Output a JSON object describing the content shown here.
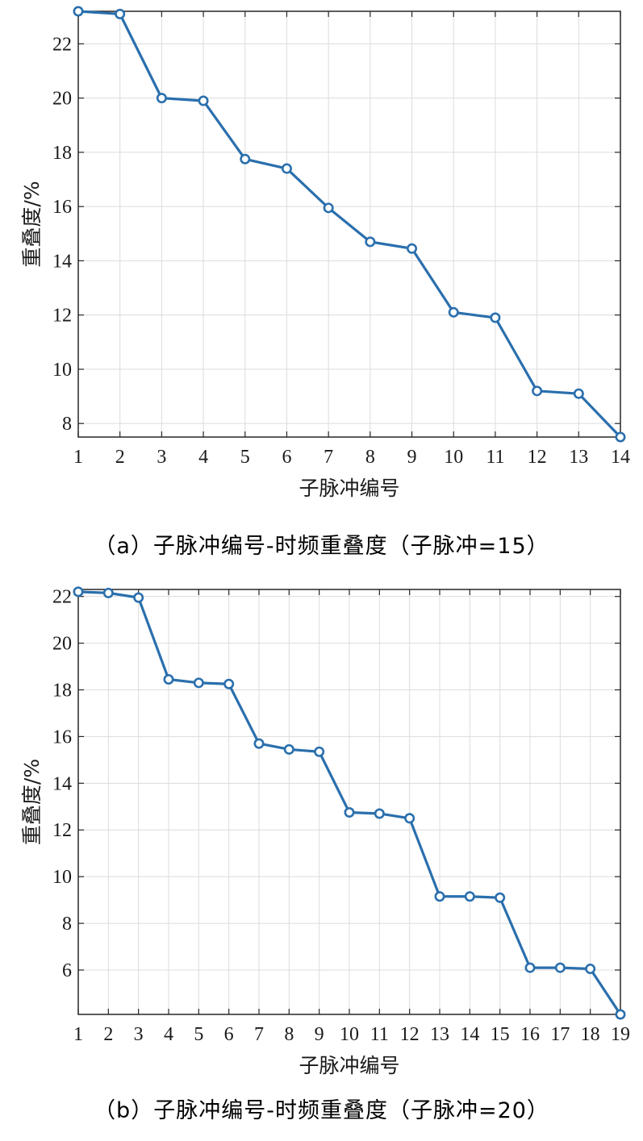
{
  "chart_data": [
    {
      "type": "line",
      "xlabel": "子脉冲编号",
      "ylabel": "重叠度/%",
      "caption": "（a）子脉冲编号-时频重叠度（子脉冲=15）",
      "x": [
        1,
        2,
        3,
        4,
        5,
        6,
        7,
        8,
        9,
        10,
        11,
        12,
        13,
        14
      ],
      "series": [
        {
          "values": [
            23.2,
            23.1,
            20.0,
            19.9,
            17.75,
            17.4,
            15.95,
            14.7,
            14.45,
            12.1,
            11.9,
            9.2,
            9.1,
            7.5
          ],
          "color": "#2a6fad",
          "marker": "circle"
        }
      ],
      "xlim": [
        1,
        14
      ],
      "ylim": [
        7.5,
        23.2
      ],
      "yticks": [
        8,
        10,
        12,
        14,
        16,
        18,
        20,
        22
      ],
      "xticks": [
        1,
        2,
        3,
        4,
        5,
        6,
        7,
        8,
        9,
        10,
        11,
        12,
        13,
        14
      ],
      "grid": true
    },
    {
      "type": "line",
      "xlabel": "子脉冲编号",
      "ylabel": "重叠度/%",
      "caption": "（b）子脉冲编号-时频重叠度（子脉冲=20）",
      "x": [
        1,
        2,
        3,
        4,
        5,
        6,
        7,
        8,
        9,
        10,
        11,
        12,
        13,
        14,
        15,
        16,
        17,
        18,
        19
      ],
      "series": [
        {
          "values": [
            22.2,
            22.15,
            21.95,
            18.45,
            18.3,
            18.25,
            15.7,
            15.45,
            15.35,
            12.75,
            12.7,
            12.5,
            9.15,
            9.15,
            9.1,
            6.1,
            6.1,
            6.05,
            4.1
          ],
          "color": "#2a6fad",
          "marker": "circle"
        }
      ],
      "xlim": [
        1,
        19
      ],
      "ylim": [
        4.1,
        22.3
      ],
      "yticks": [
        6,
        8,
        10,
        12,
        14,
        16,
        18,
        20,
        22
      ],
      "xticks": [
        1,
        2,
        3,
        4,
        5,
        6,
        7,
        8,
        9,
        10,
        11,
        12,
        13,
        14,
        15,
        16,
        17,
        18,
        19
      ],
      "grid": true
    }
  ]
}
